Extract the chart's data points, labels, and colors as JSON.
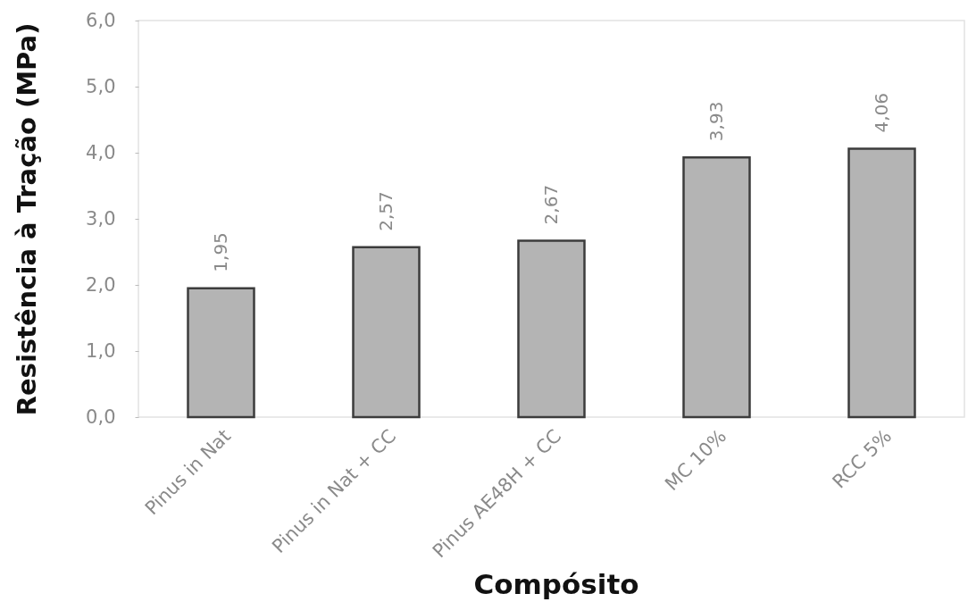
{
  "chart_data": {
    "type": "bar",
    "xlabel": "Compósito",
    "ylabel": "Resistência à Tração (MPa)",
    "categories": [
      "Pinus in Nat",
      "Pinus in Nat + CC",
      "Pinus AE48H + CC",
      "MC 10%",
      "RCC 5%"
    ],
    "values": [
      1.95,
      2.57,
      2.67,
      3.93,
      4.06
    ],
    "value_labels": [
      "1,95",
      "2,57",
      "2,67",
      "3,93",
      "4,06"
    ],
    "color": "#b4b4b4",
    "ylim": [
      0,
      6
    ],
    "yticks": [
      {
        "value": 0,
        "label": "0,0"
      },
      {
        "value": 1,
        "label": "1,0"
      },
      {
        "value": 2,
        "label": "2,0"
      },
      {
        "value": 3,
        "label": "3,0"
      },
      {
        "value": 4,
        "label": "4,0"
      },
      {
        "value": 5,
        "label": "5,0"
      },
      {
        "value": 6,
        "label": "6,0"
      }
    ],
    "grid": false
  }
}
